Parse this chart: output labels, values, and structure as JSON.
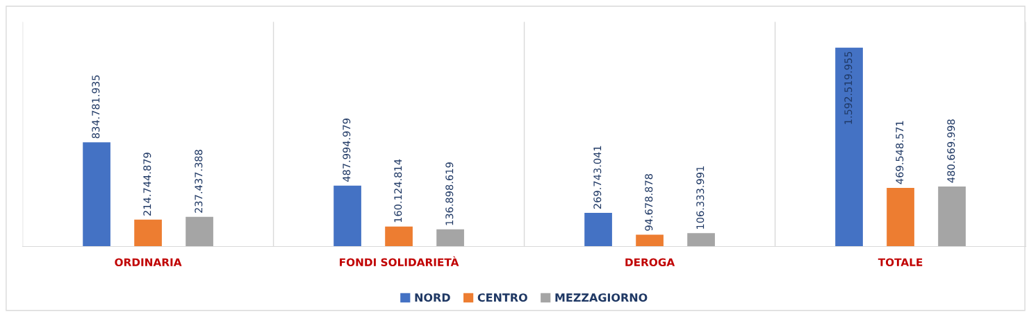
{
  "chart_data": {
    "type": "bar",
    "categories": [
      "ORDINARIA",
      "FONDI SOLIDARIETÀ",
      "DEROGA",
      "TOTALE"
    ],
    "series": [
      {
        "name": "NORD",
        "color": "#4472c4",
        "values": [
          834781935,
          487994979,
          269743041,
          1592519955
        ],
        "value_labels": [
          "834.781.935",
          "487.994.979",
          "269.743.041",
          "1.592.519.955"
        ]
      },
      {
        "name": "CENTRO",
        "color": "#ed7d31",
        "values": [
          214744879,
          160124814,
          94678878,
          469548571
        ],
        "value_labels": [
          "214.744.879",
          "160.124.814",
          "94.678.878",
          "469.548.571"
        ]
      },
      {
        "name": "MEZZAGIORNO",
        "color": "#a5a5a5",
        "values": [
          237437388,
          136898619,
          106333991,
          480669998
        ],
        "value_labels": [
          "237.437.388",
          "136.898.619",
          "106.333.991",
          "480.669.998"
        ]
      }
    ],
    "legend": "bottom",
    "grid": false
  }
}
